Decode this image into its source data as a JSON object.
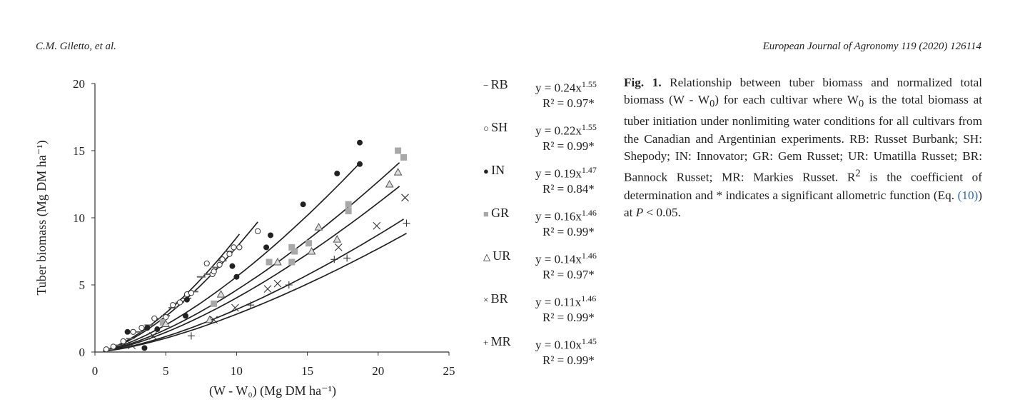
{
  "header": {
    "authors": "C.M. Giletto, et al.",
    "journal": "European Journal of Agronomy 119 (2020) 126114"
  },
  "legend": [
    {
      "label": "RB",
      "eq": "y = 0.24x",
      "exp": "1.55",
      "r2": "R² = 0.97*",
      "marker": "dash"
    },
    {
      "label": "SH",
      "eq": "y = 0.22x",
      "exp": "1.55",
      "r2": "R² = 0.99*",
      "marker": "circle-open"
    },
    {
      "label": "IN",
      "eq": "y = 0.19x",
      "exp": "1.47",
      "r2": "R² = 0.84*",
      "marker": "circle-filled"
    },
    {
      "label": "GR",
      "eq": "y = 0.16x",
      "exp": "1.46",
      "r2": "R² = 0.99*",
      "marker": "square-gray"
    },
    {
      "label": "UR",
      "eq": "y = 0.14x",
      "exp": "1.46",
      "r2": "R² = 0.97*",
      "marker": "triangle-open"
    },
    {
      "label": "BR",
      "eq": "y = 0.11x",
      "exp": "1.46",
      "r2": "R² = 0.99*",
      "marker": "x"
    },
    {
      "label": "MR",
      "eq": "y = 0.10x",
      "exp": "1.45",
      "r2": "R² = 0.99*",
      "marker": "plus"
    }
  ],
  "caption": {
    "fig_label": "Fig. 1.",
    "text_a": " Relationship between tuber biomass and normalized total biomass (W - W",
    "sub1": "0",
    "text_b": ") for each cultivar where W",
    "sub2": "0",
    "text_c": " is the total biomass at tuber initiation under nonlimiting water conditions for all cultivars from the Canadian and Argentinian experi­ments. RB: Russet Burbank; SH: Shepody; IN: Innovator; GR: Gem Russet; UR: Umatilla Russet; BR: Bannock Russet; MR: Markies Russet. R",
    "sup": "2",
    "text_d": " is the coefficient of determination and * indicates a significant allometric function (Eq. ",
    "ref": "(10)",
    "text_e": ") at ",
    "p": "P",
    "text_f": " < 0.05."
  },
  "chart_data": {
    "type": "scatter",
    "ylabel": "Tuber biomass (Mg DM ha⁻¹)",
    "xlabel": "(W - W₀) (Mg DM ha⁻¹)",
    "xlim": [
      0,
      25
    ],
    "ylim": [
      0,
      20
    ],
    "xticks": [
      "0",
      "5",
      "10",
      "15",
      "20",
      "25"
    ],
    "yticks": [
      "0",
      "5",
      "10",
      "15",
      "20"
    ],
    "series": [
      {
        "name": "RB",
        "a": 0.24,
        "b": 1.55,
        "xmax": 10.2,
        "marker": "dash",
        "points": [
          [
            1,
            0.2
          ],
          [
            1.5,
            0.5
          ],
          [
            2.5,
            1
          ],
          [
            3,
            1.5
          ],
          [
            3.8,
            2
          ],
          [
            4.3,
            2.5
          ],
          [
            5,
            2.7
          ],
          [
            5.5,
            3.3
          ],
          [
            6,
            3.7
          ],
          [
            6.5,
            4
          ],
          [
            7,
            4.5
          ],
          [
            7.5,
            5.6
          ],
          [
            8,
            5.8
          ],
          [
            8.5,
            6.3
          ],
          [
            9,
            6.8
          ],
          [
            9.5,
            7.5
          ]
        ]
      },
      {
        "name": "SH",
        "a": 0.22,
        "b": 1.55,
        "xmax": 11.5,
        "marker": "circle-open",
        "points": [
          [
            0.8,
            0.2
          ],
          [
            1.3,
            0.4
          ],
          [
            2,
            0.8
          ],
          [
            2.7,
            1.5
          ],
          [
            3.3,
            1.8
          ],
          [
            4.2,
            2.5
          ],
          [
            5,
            2.6
          ],
          [
            5.5,
            3.5
          ],
          [
            6,
            3.7
          ],
          [
            6.5,
            4.3
          ],
          [
            6.8,
            4.4
          ],
          [
            7.9,
            6.6
          ],
          [
            8.3,
            5.8
          ],
          [
            8.4,
            6.0
          ],
          [
            8.8,
            6.5
          ],
          [
            9,
            6.9
          ],
          [
            9.5,
            7.3
          ],
          [
            9.8,
            7.8
          ],
          [
            10.2,
            7.8
          ],
          [
            11.5,
            9.0
          ]
        ]
      },
      {
        "name": "IN",
        "a": 0.19,
        "b": 1.47,
        "xmax": 18.7,
        "marker": "circle-filled",
        "points": [
          [
            2.3,
            1.5
          ],
          [
            3.5,
            0.3
          ],
          [
            3.7,
            1.8
          ],
          [
            4.4,
            1.7
          ],
          [
            6.4,
            2.7
          ],
          [
            6.5,
            3.9
          ],
          [
            9.7,
            6.4
          ],
          [
            10,
            5.6
          ],
          [
            12.1,
            7.8
          ],
          [
            12.4,
            8.7
          ],
          [
            14.7,
            11
          ],
          [
            17.1,
            13.3
          ],
          [
            18.7,
            14
          ],
          [
            18.7,
            15.6
          ]
        ]
      },
      {
        "name": "GR",
        "a": 0.16,
        "b": 1.46,
        "xmax": 21.5,
        "marker": "square-gray",
        "points": [
          [
            4.8,
            2.2
          ],
          [
            8.4,
            3.6
          ],
          [
            12.3,
            6.7
          ],
          [
            13.9,
            6.7
          ],
          [
            13.9,
            7.8
          ],
          [
            14.1,
            7.5
          ],
          [
            15.1,
            8.1
          ],
          [
            17.9,
            10.5
          ],
          [
            17.9,
            11
          ],
          [
            21.4,
            15
          ],
          [
            21.8,
            14.5
          ]
        ]
      },
      {
        "name": "UR",
        "a": 0.14,
        "b": 1.46,
        "xmax": 21.5,
        "marker": "triangle-open",
        "points": [
          [
            5,
            2.1
          ],
          [
            8.1,
            2.4
          ],
          [
            8.9,
            4.3
          ],
          [
            12.9,
            6.7
          ],
          [
            15.3,
            7.5
          ],
          [
            15.8,
            9.3
          ],
          [
            17.1,
            8.4
          ],
          [
            20.8,
            12.5
          ],
          [
            21.4,
            13.4
          ]
        ]
      },
      {
        "name": "BR",
        "a": 0.11,
        "b": 1.46,
        "xmax": 21.8,
        "marker": "x",
        "points": [
          [
            2.6,
            0.5
          ],
          [
            4.1,
            1.2
          ],
          [
            8.4,
            2.4
          ],
          [
            9.9,
            3.3
          ],
          [
            12.2,
            4.7
          ],
          [
            12.9,
            5.1
          ],
          [
            17.2,
            7.8
          ],
          [
            19.9,
            9.4
          ],
          [
            21.9,
            11.5
          ]
        ]
      },
      {
        "name": "MR",
        "a": 0.1,
        "b": 1.45,
        "xmax": 22,
        "marker": "plus",
        "points": [
          [
            6.8,
            1.2
          ],
          [
            11,
            3.5
          ],
          [
            13.7,
            5
          ],
          [
            16.9,
            6.9
          ],
          [
            17.8,
            7
          ],
          [
            22,
            9.6
          ]
        ]
      }
    ]
  }
}
